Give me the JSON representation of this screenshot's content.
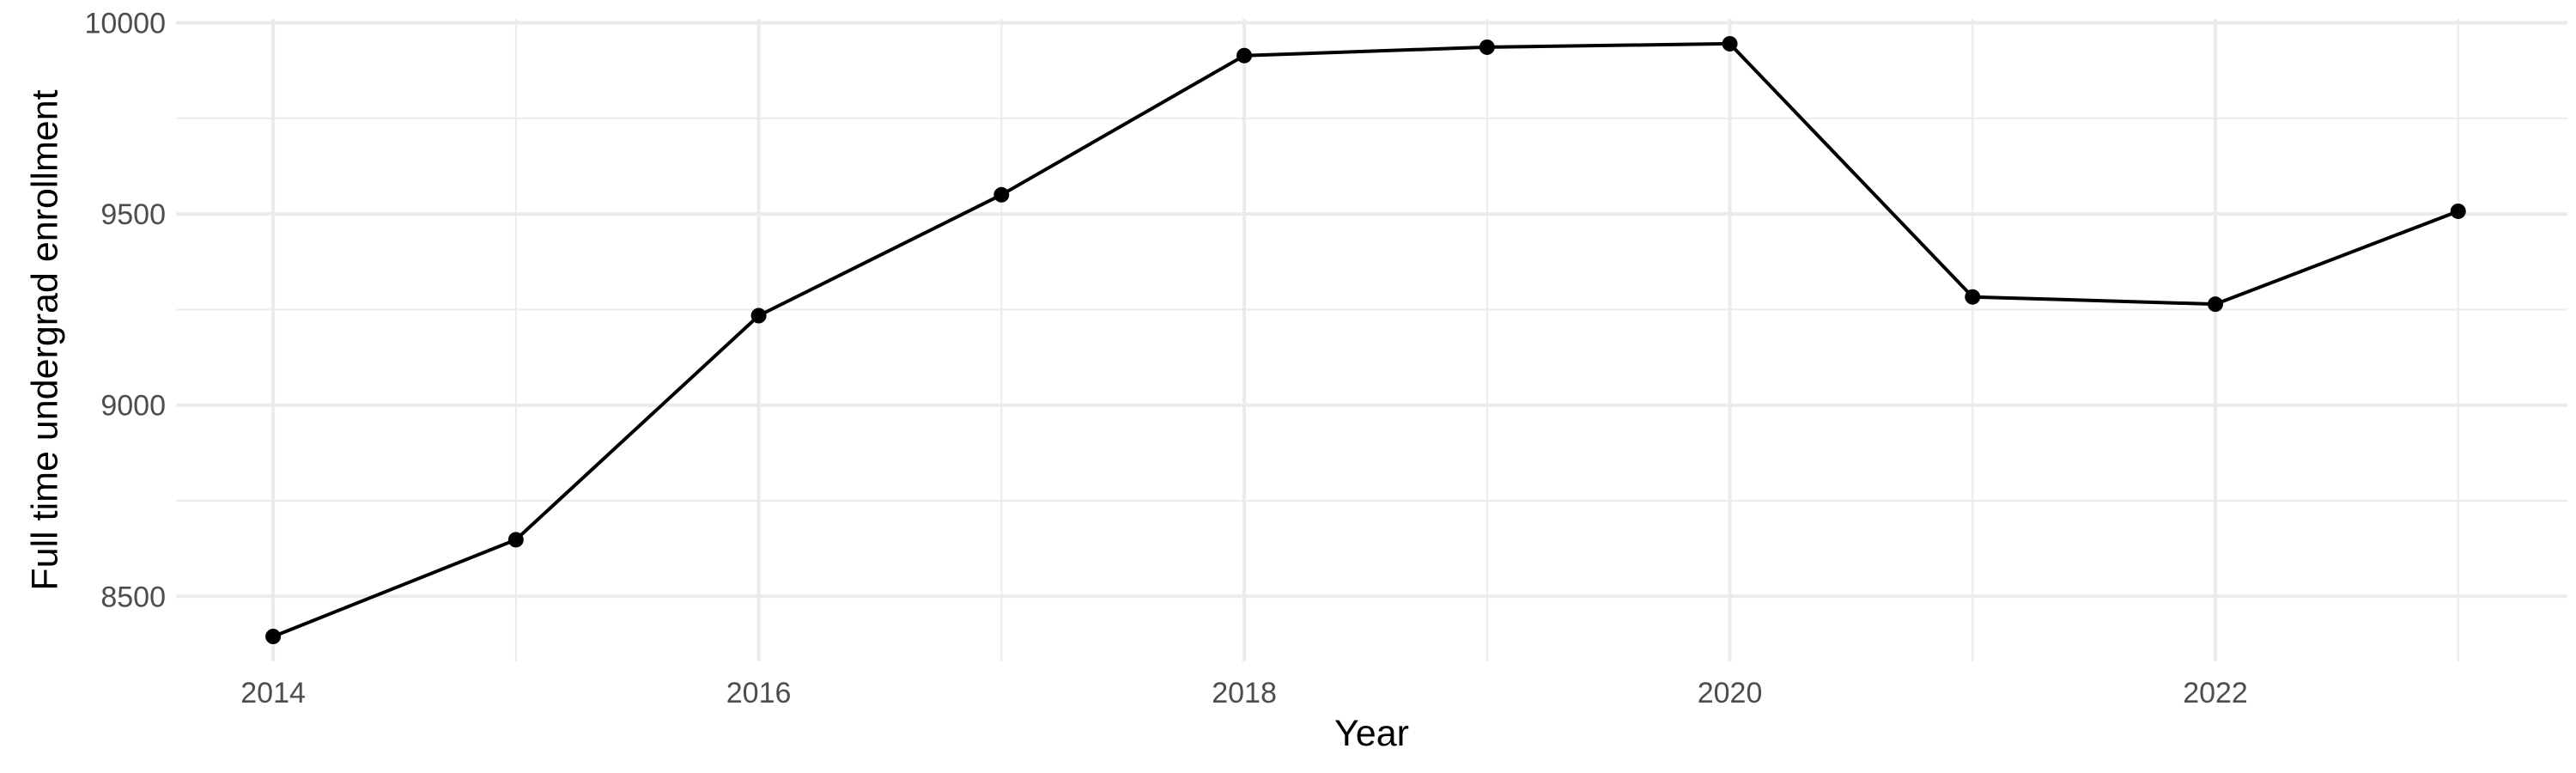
{
  "chart_data": {
    "type": "line",
    "title": "",
    "xlabel": "Year",
    "ylabel": "Full time undergrad enrollment",
    "x": [
      2014,
      2015,
      2016,
      2017,
      2018,
      2019,
      2020,
      2021,
      2022,
      2023
    ],
    "series": [
      {
        "values": [
          8395,
          8648,
          9234,
          9550,
          9914,
          9936,
          9945,
          9283,
          9264,
          9507
        ]
      }
    ],
    "xlim": [
      2013.6,
      2023.45
    ],
    "ylim": [
      8330,
      10010
    ],
    "x_ticks": [
      2014,
      2016,
      2018,
      2020,
      2022
    ],
    "x_tick_labels": [
      "2014",
      "2016",
      "2018",
      "2020",
      "2022"
    ],
    "x_minor_ticks": [
      2015,
      2017,
      2019,
      2021,
      2023
    ],
    "y_ticks": [
      8500,
      9000,
      9500,
      10000
    ],
    "y_tick_labels": [
      "8500",
      "9000",
      "9500",
      "10000"
    ],
    "y_minor_ticks": [
      8750,
      9250,
      9750
    ],
    "grid": true,
    "legend": "none",
    "colors": {
      "line": "#000000",
      "grid": "#ebebeb",
      "tick_text": "#4d4d4d"
    }
  }
}
